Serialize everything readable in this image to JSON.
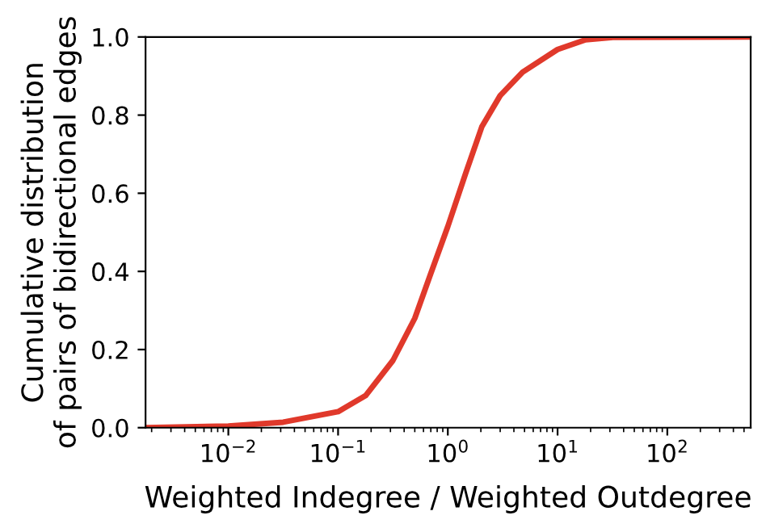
{
  "chart_data": {
    "type": "line",
    "xlabel": "Weighted Indegree / Weighted Outdegree",
    "ylabel": "Cumulative distribution\nof pairs of bidirectional edges",
    "log": "x",
    "grid": false,
    "marker": "none",
    "line_style": "solid",
    "xlim": [
      0.00176,
      575
    ],
    "ylim": [
      0,
      1
    ],
    "xticks": [
      {
        "value": 0.01,
        "label": "10$^{−2}$"
      },
      {
        "value": 0.1,
        "label": "10$^{−1}$"
      },
      {
        "value": 1,
        "label": "10$^{0}$"
      },
      {
        "value": 10,
        "label": "10$^{1}$"
      },
      {
        "value": 100,
        "label": "10$^{2}$"
      }
    ],
    "yticks": [
      {
        "value": 0,
        "label": "0.0"
      },
      {
        "value": 0.2,
        "label": "0.2"
      },
      {
        "value": 0.4,
        "label": "0.4"
      },
      {
        "value": 0.6,
        "label": "0.6"
      },
      {
        "value": 0.8,
        "label": "0.8"
      },
      {
        "value": 1,
        "label": "1.0"
      }
    ],
    "series": [
      {
        "color": "#e0392b",
        "x": [
          0.00176,
          0.01,
          0.0316,
          0.1,
          0.178,
          0.316,
          0.5,
          0.69,
          1,
          1.45,
          2.04,
          3.0,
          4.8,
          10,
          18,
          32,
          575
        ],
        "values": [
          0,
          0.004,
          0.014,
          0.041,
          0.082,
          0.172,
          0.28,
          0.39,
          0.515,
          0.65,
          0.77,
          0.85,
          0.91,
          0.968,
          0.993,
          0.999,
          1.0
        ]
      }
    ]
  }
}
